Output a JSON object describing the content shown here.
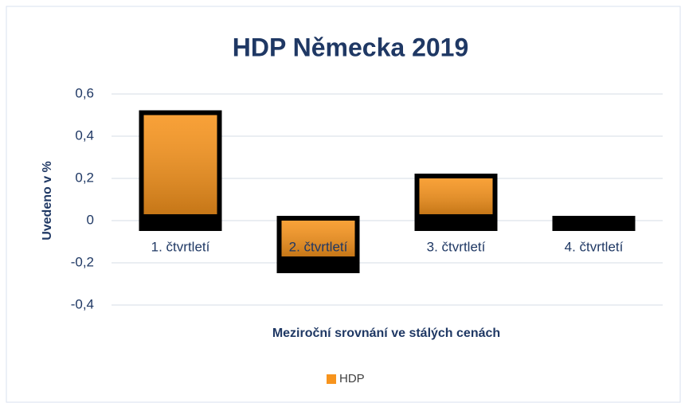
{
  "chart_data": {
    "type": "bar",
    "title": "HDP Německa 2019",
    "y_axis_label": "Uvedeno v %",
    "x_axis_label": "Meziroční srovnání ve stálých cenách",
    "categories": [
      "1. čtvrtletí",
      "2. čtvrtletí",
      "3. čtvrtletí",
      "4. čtvrtletí"
    ],
    "series": [
      {
        "name": "HDP",
        "color": "#f7941d",
        "values": [
          0.5,
          -0.2,
          0.2,
          0
        ]
      }
    ],
    "ylim": [
      -0.4,
      0.6
    ],
    "yticks": [
      {
        "value": -0.4,
        "label": "-0,4"
      },
      {
        "value": -0.2,
        "label": "-0,2"
      },
      0,
      {
        "value": 0.2,
        "label": "0,2"
      },
      {
        "value": 0.4,
        "label": "0,4"
      },
      {
        "value": 0.6,
        "label": "0,6"
      }
    ],
    "grid": true,
    "legend": "bottom"
  }
}
